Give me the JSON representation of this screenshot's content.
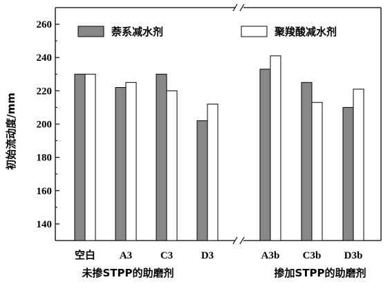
{
  "chart_data": {
    "type": "bar",
    "ylabel": "初始流动度/mm",
    "ylim": [
      130,
      270
    ],
    "yticks": [
      140,
      160,
      180,
      200,
      220,
      240,
      260
    ],
    "legend_position": "top",
    "groups": [
      {
        "label": "未掺STPP的助磨剂",
        "categories": [
          "空白",
          "A3",
          "C3",
          "D3"
        ]
      },
      {
        "label": "掺加STPP的助磨剂",
        "categories": [
          "A3b",
          "C3b",
          "D3b"
        ]
      }
    ],
    "categories": [
      "空白",
      "A3",
      "C3",
      "D3",
      "A3b",
      "C3b",
      "D3b"
    ],
    "series": [
      {
        "name": "萘系减水剂",
        "color": "#888888",
        "values": [
          230,
          222,
          230,
          202,
          233,
          225,
          210
        ]
      },
      {
        "name": "聚羧酸减水剂",
        "color": "#ffffff",
        "values": [
          230,
          225,
          220,
          212,
          241,
          213,
          221
        ]
      }
    ],
    "axis_break": true
  }
}
